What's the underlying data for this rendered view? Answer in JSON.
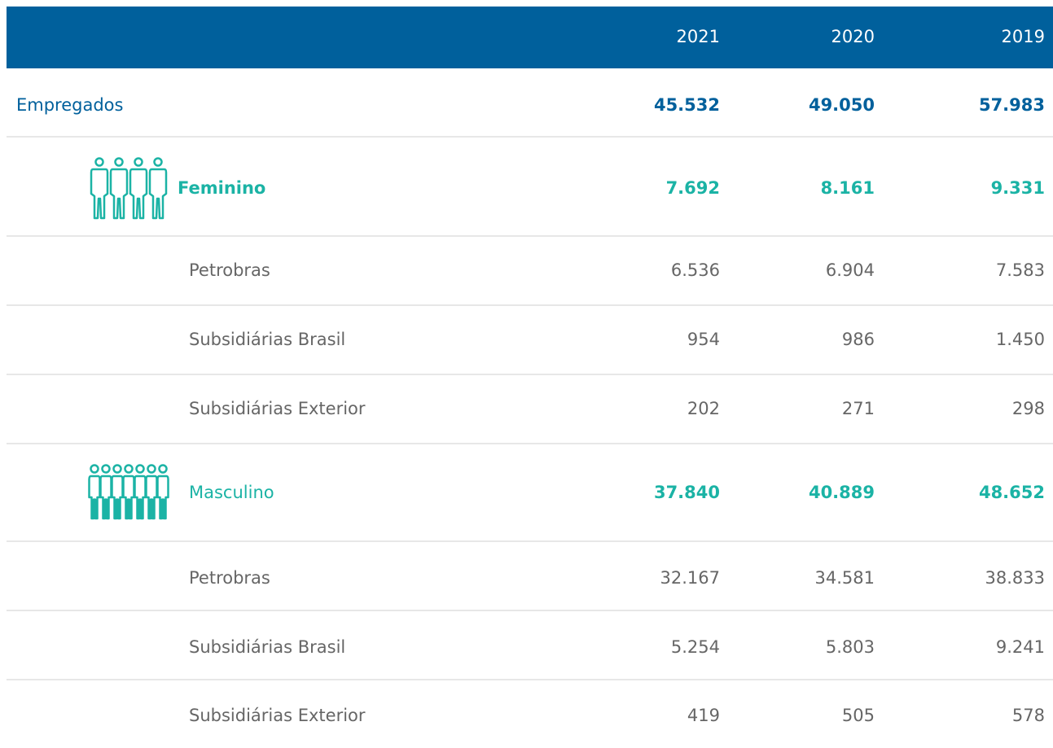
{
  "table": {
    "columns": [
      "2021",
      "2020",
      "2019"
    ],
    "rows": [
      {
        "label": "Empregados",
        "values": [
          "45.532",
          "49.050",
          "57.983"
        ]
      },
      {
        "label": "Feminino",
        "values": [
          "7.692",
          "8.161",
          "9.331"
        ]
      },
      {
        "label": "Petrobras",
        "values": [
          "6.536",
          "6.904",
          "7.583"
        ]
      },
      {
        "label": "Subsidiárias Brasil",
        "values": [
          "954",
          "986",
          "1.450"
        ]
      },
      {
        "label": "Subsidiárias Exterior",
        "values": [
          "202",
          "271",
          "298"
        ]
      },
      {
        "label": "Masculino",
        "values": [
          "37.840",
          "40.889",
          "48.652"
        ]
      },
      {
        "label": "Petrobras",
        "values": [
          "32.167",
          "34.581",
          "38.833"
        ]
      },
      {
        "label": "Subsidiárias Brasil",
        "values": [
          "5.254",
          "5.803",
          "9.241"
        ]
      },
      {
        "label": "Subsidiárias Exterior",
        "values": [
          "419",
          "505",
          "578"
        ]
      }
    ]
  }
}
